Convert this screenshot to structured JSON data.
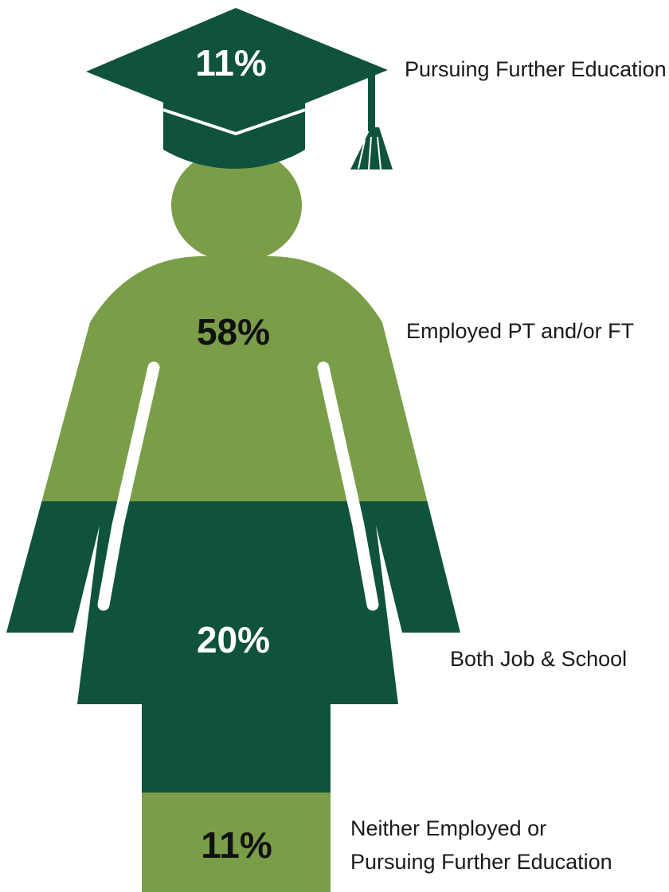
{
  "chart_data": {
    "type": "pictograph",
    "colors": {
      "dark": "#0f523d",
      "light": "#7a9e48",
      "gap": "#ffffff"
    },
    "segments": [
      {
        "key": "further_education",
        "value": 11,
        "value_label": "11%",
        "label": "Pursuing Further Education",
        "fill": "dark",
        "text_color": "#ffffff"
      },
      {
        "key": "employed",
        "value": 58,
        "value_label": "58%",
        "label": "Employed PT and/or FT",
        "fill": "light",
        "text_color": "#111111"
      },
      {
        "key": "both",
        "value": 20,
        "value_label": "20%",
        "label": "Both Job & School",
        "fill": "dark",
        "text_color": "#ffffff"
      },
      {
        "key": "neither",
        "value": 11,
        "value_label": "11%",
        "label_lines": [
          "Neither Employed or",
          "Pursuing Further Education"
        ],
        "fill": "light",
        "text_color": "#111111"
      }
    ]
  }
}
